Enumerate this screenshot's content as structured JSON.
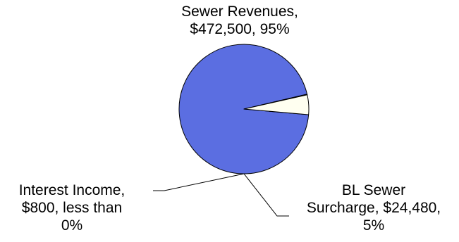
{
  "chart_data": {
    "type": "pie",
    "slices": [
      {
        "category": "Sewer Revenues",
        "value": 472500,
        "label_lines": [
          "Sewer Revenues,",
          "$472,500, 95%"
        ],
        "color": "#5b6ee1"
      },
      {
        "category": "Interest Income",
        "value": 800,
        "label_lines": [
          "Interest Income,",
          "$800, less than",
          "0%"
        ],
        "color": "#fffff0"
      },
      {
        "category": "BL Sewer Surcharge",
        "value": 24480,
        "label_lines": [
          "BL Sewer",
          "Surcharge, $24,480,",
          "5%"
        ],
        "color": "#fffff0"
      }
    ],
    "legend": "none",
    "labels": "outside"
  }
}
